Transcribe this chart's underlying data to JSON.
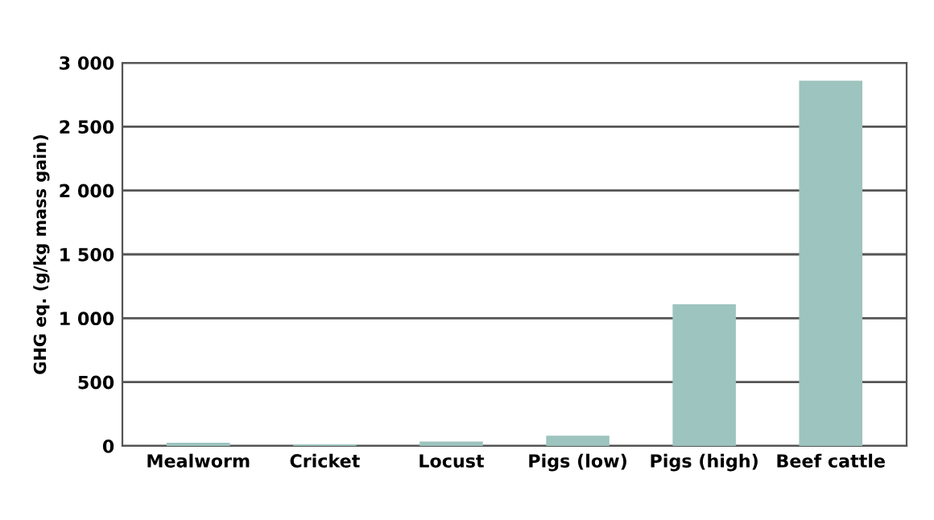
{
  "chart_data": {
    "type": "bar",
    "ylabel": "GHG eq. (g/kg mass gain)",
    "categories": [
      "Mealworm",
      "Cricket",
      "Locust",
      "Pigs (low)",
      "Pigs (high)",
      "Beef cattle"
    ],
    "values": [
      25,
      13,
      34,
      80,
      1110,
      2860
    ],
    "color": "#9dc4bf",
    "ylim": [
      0,
      3000
    ],
    "yticks": [
      0,
      {
        "value": 500,
        "label": "500"
      },
      {
        "value": 1000,
        "label": "1 000"
      },
      {
        "value": 1500,
        "label": "1 500"
      },
      {
        "value": 2000,
        "label": "2 000"
      },
      {
        "value": 2500,
        "label": "2 500"
      },
      {
        "value": 3000,
        "label": "3 000"
      }
    ],
    "grid": "y",
    "legend": false
  }
}
